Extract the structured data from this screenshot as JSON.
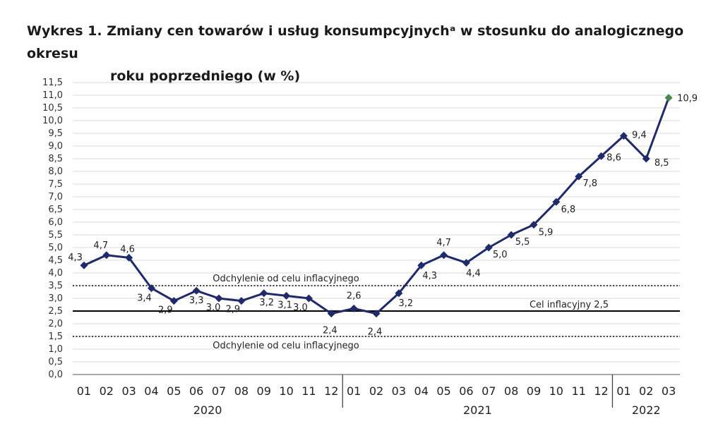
{
  "title": {
    "line1": "Wykres 1. Zmiany cen towarów i usług konsumpcyjnychᵃ w stosunku do analogicznego okresu",
    "line2": "roku poprzedniego (w %)"
  },
  "chart_data": {
    "type": "line",
    "ylim": [
      0,
      11.5
    ],
    "y_step": 0.5,
    "grid": true,
    "categories": [
      "01",
      "02",
      "03",
      "04",
      "05",
      "06",
      "07",
      "08",
      "09",
      "10",
      "11",
      "12",
      "01",
      "02",
      "03",
      "04",
      "05",
      "06",
      "07",
      "08",
      "09",
      "10",
      "11",
      "12",
      "01",
      "02",
      "03"
    ],
    "years": [
      {
        "label": "2020",
        "start": 0,
        "end": 11
      },
      {
        "label": "2021",
        "start": 12,
        "end": 23
      },
      {
        "label": "2022",
        "start": 24,
        "end": 26
      }
    ],
    "series": [
      {
        "values": [
          4.3,
          4.7,
          4.6,
          3.4,
          2.9,
          3.3,
          3.0,
          2.9,
          3.2,
          3.1,
          3.0,
          2.4,
          2.6,
          2.4,
          3.2,
          4.3,
          4.7,
          4.4,
          5.0,
          5.5,
          5.9,
          6.8,
          7.8,
          8.6,
          9.4,
          8.5,
          10.9
        ],
        "labels": [
          "4,3",
          "4,7",
          "4,6",
          "3,4",
          "2,9",
          "3,3",
          "3,0",
          "2,9",
          "3,2",
          "3,1",
          "3,0",
          "2,4",
          "2,6",
          "2,4",
          "3,2",
          "4,3",
          "4,7",
          "4,4",
          "5,0",
          "5,5",
          "5,9",
          "6,8",
          "7,8",
          "8,6",
          "9,4",
          "8,5",
          "10,9"
        ],
        "color": "#1f2a6b",
        "last_point_color": "#4a8a4a"
      }
    ],
    "reference_lines": [
      {
        "value": 3.5,
        "style": "dotted",
        "label": "Odchylenie od celu inflacyjnego"
      },
      {
        "value": 2.5,
        "style": "solid",
        "label": "Cel inflacyjny 2,5"
      },
      {
        "value": 1.5,
        "style": "dotted",
        "label": "Odchylenie od celu inflacyjnego"
      }
    ]
  }
}
